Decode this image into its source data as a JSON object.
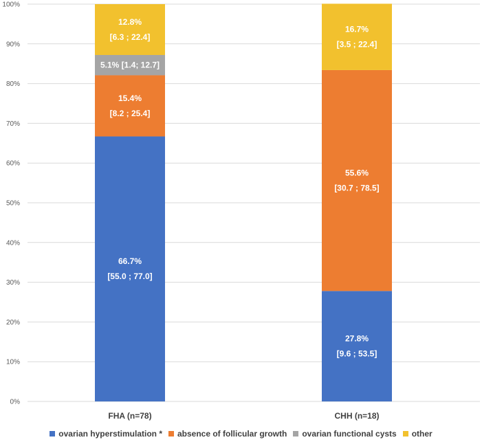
{
  "chart_data": {
    "type": "bar",
    "stacked": true,
    "categories": [
      "FHA (n=78)",
      "CHH (n=18)"
    ],
    "ylim": [
      0,
      100
    ],
    "yticks": [
      "0%",
      "10%",
      "20%",
      "30%",
      "40%",
      "50%",
      "60%",
      "70%",
      "80%",
      "90%",
      "100%"
    ],
    "grid": true,
    "legend_position": "bottom",
    "series": [
      {
        "name": "ovarian hyperstimulation *",
        "color": "#4472C4",
        "values": [
          66.7,
          27.8
        ],
        "labels": [
          [
            "66.7%",
            "[55.0 ; 77.0]"
          ],
          [
            "27.8%",
            "[9.6 ; 53.5]"
          ]
        ]
      },
      {
        "name": "absence of follicular growth",
        "color": "#ED7D31",
        "values": [
          15.4,
          55.6
        ],
        "labels": [
          [
            "15.4%",
            "[8.2 ; 25.4]"
          ],
          [
            "55.6%",
            "[30.7 ; 78.5]"
          ]
        ]
      },
      {
        "name": "ovarian functional cysts",
        "color": "#A5A5A5",
        "values": [
          5.1,
          0
        ],
        "labels": [
          [
            "5.1%  [1.4; 12.7]"
          ],
          []
        ]
      },
      {
        "name": "other",
        "color": "#F2C12E",
        "values": [
          12.8,
          16.7
        ],
        "labels": [
          [
            "12.8%",
            "[6.3 ; 22.4]"
          ],
          [
            "16.7%",
            "[3.5 ; 22.4]"
          ]
        ]
      }
    ]
  }
}
